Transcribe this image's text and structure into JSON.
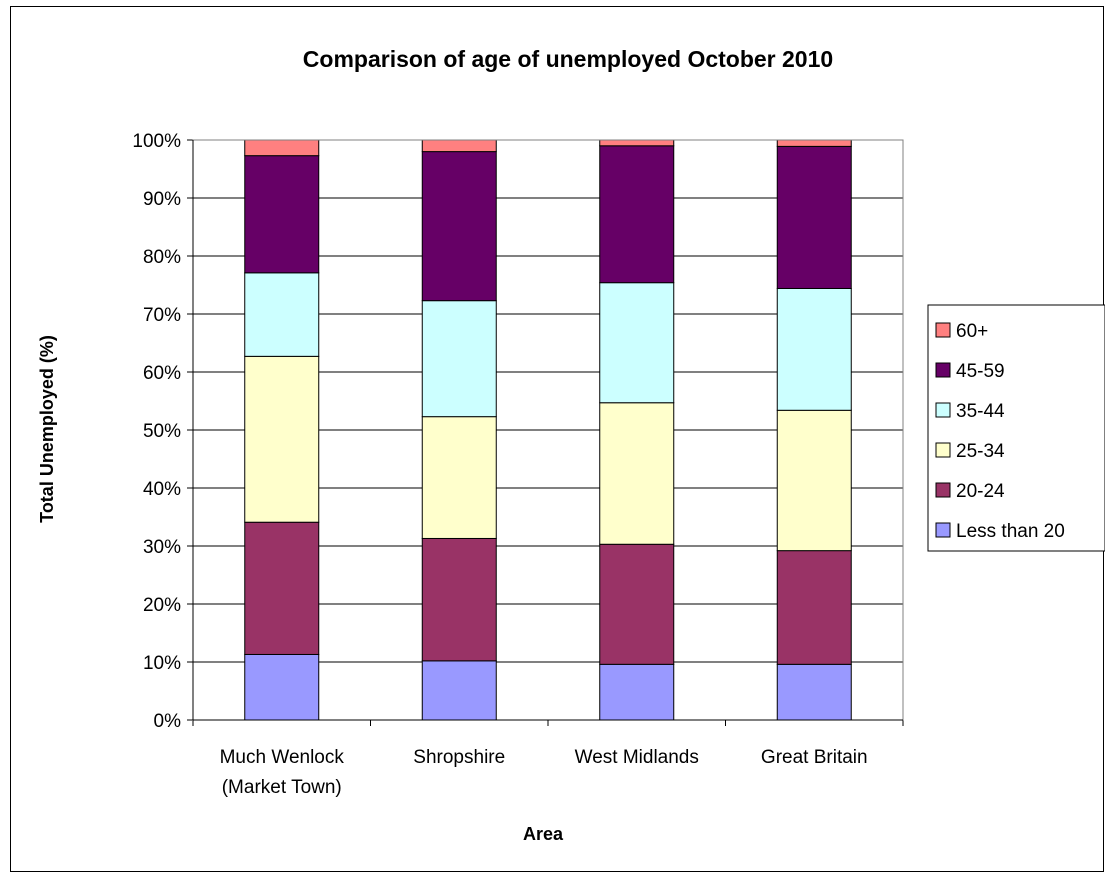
{
  "chart_data": {
    "type": "bar",
    "stacked": true,
    "percent_stacked": true,
    "title": "Comparison of age of unemployed October 2010",
    "xlabel": "Area",
    "ylabel": "Total Unemployed (%)",
    "ylim": [
      0,
      100
    ],
    "y_ticks": [
      "0%",
      "10%",
      "20%",
      "30%",
      "40%",
      "50%",
      "60%",
      "70%",
      "80%",
      "90%",
      "100%"
    ],
    "grid": true,
    "legend_position": "right",
    "categories": [
      [
        "Much Wenlock",
        "(Market Town)"
      ],
      [
        "Shropshire"
      ],
      [
        "West Midlands"
      ],
      [
        "Great Britain"
      ]
    ],
    "series": [
      {
        "name": "Less than 20",
        "color": "#9999ff",
        "values": [
          11.3,
          10.2,
          9.6,
          9.6
        ]
      },
      {
        "name": "20-24",
        "color": "#993366",
        "values": [
          22.8,
          21.1,
          20.7,
          19.6
        ]
      },
      {
        "name": "25-34",
        "color": "#ffffcc",
        "values": [
          28.6,
          21.0,
          24.4,
          24.2
        ]
      },
      {
        "name": "35-44",
        "color": "#ccffff",
        "values": [
          14.4,
          20.0,
          20.7,
          21.0
        ]
      },
      {
        "name": "45-59",
        "color": "#660066",
        "values": [
          20.2,
          25.7,
          23.6,
          24.5
        ]
      },
      {
        "name": "60+",
        "color": "#ff8080",
        "values": [
          2.7,
          2.0,
          1.0,
          1.1
        ]
      }
    ]
  }
}
